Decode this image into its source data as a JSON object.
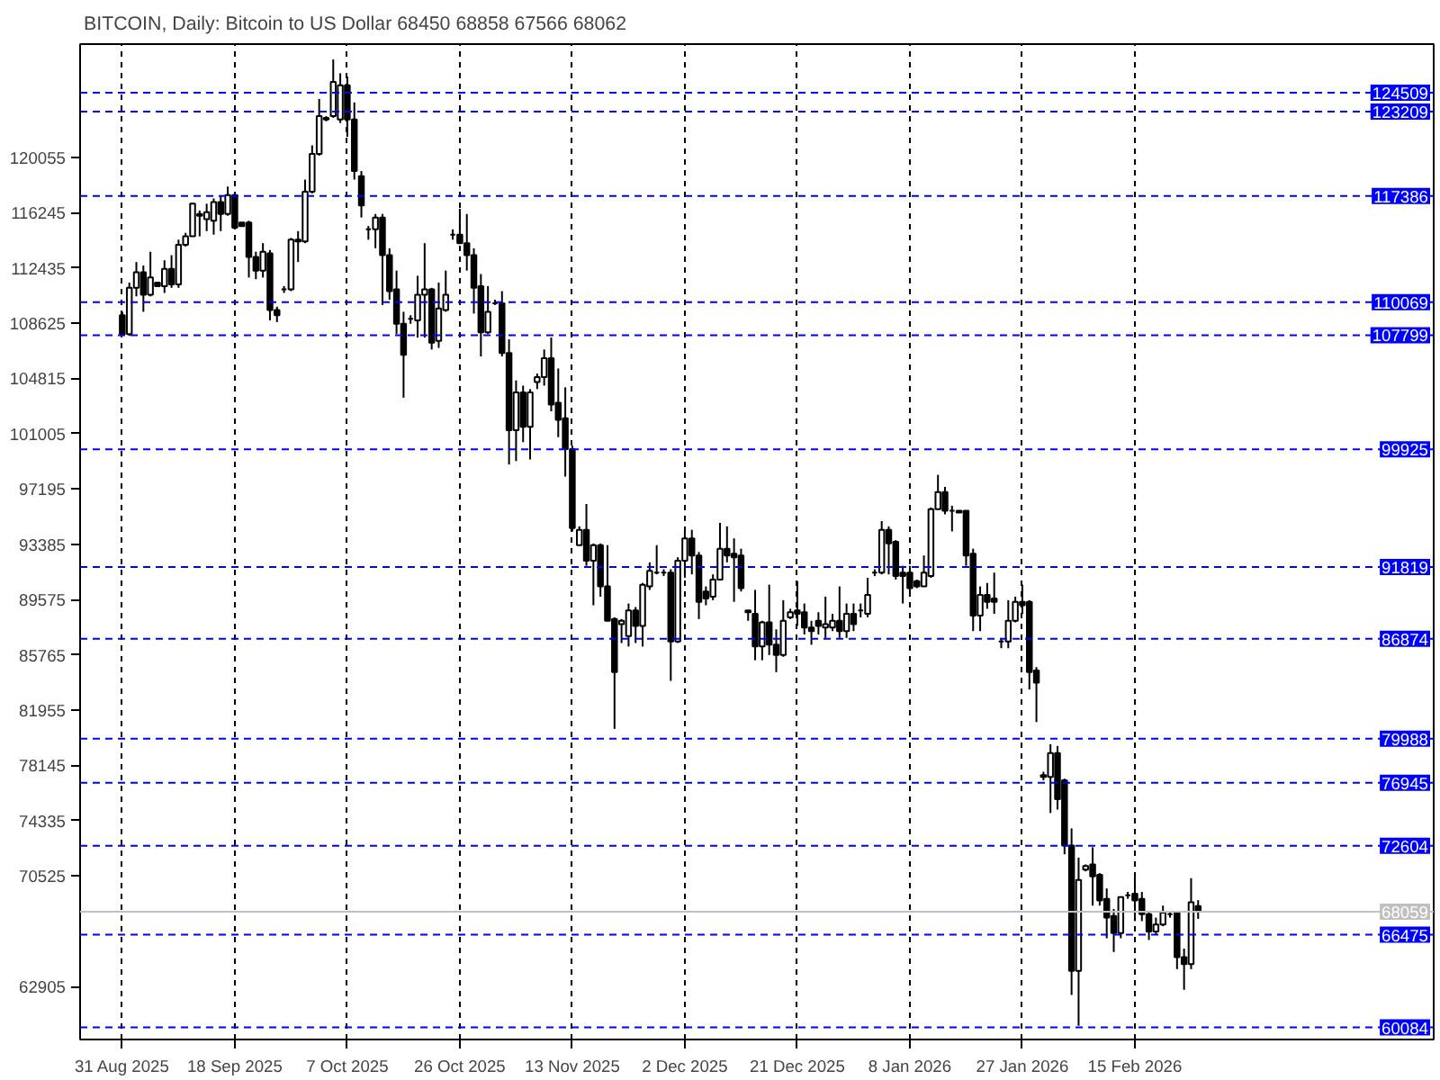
{
  "chart_data": {
    "type": "candlestick",
    "title": "BITCOIN, Daily:  Bitcoin to US Dollar  68450 68858 67566 68062",
    "categories": [
      "31 Aug 2025",
      null,
      null,
      null,
      null,
      null,
      null,
      null,
      null,
      null,
      null,
      null,
      null,
      null,
      null,
      null,
      "18 Sep 2025",
      null,
      null,
      null,
      null,
      null,
      null,
      null,
      null,
      null,
      null,
      null,
      null,
      null,
      null,
      null,
      "7 Oct 2025",
      null,
      null,
      null,
      null,
      null,
      null,
      null,
      null,
      null,
      null,
      null,
      null,
      null,
      null,
      null,
      "26 Oct 2025",
      null,
      null,
      null,
      null,
      null,
      null,
      null,
      null,
      null,
      null,
      null,
      null,
      null,
      null,
      null,
      "13 Nov 2025",
      null,
      null,
      null,
      null,
      null,
      null,
      null,
      null,
      null,
      null,
      null,
      null,
      null,
      null,
      null,
      "2 Dec 2025",
      null,
      null,
      null,
      null,
      null,
      null,
      null,
      null,
      null,
      null,
      null,
      null,
      null,
      null,
      null,
      "21 Dec 2025",
      null,
      null,
      null,
      null,
      null,
      null,
      null,
      null,
      null,
      null,
      null,
      null,
      null,
      null,
      null,
      "8 Jan 2026",
      null,
      null,
      null,
      null,
      null,
      null,
      null,
      null,
      null,
      null,
      null,
      null,
      null,
      null,
      null,
      "27 Jan 2026",
      null,
      null,
      null,
      null,
      null,
      null,
      null,
      null,
      null,
      null,
      null,
      null,
      null,
      null,
      null,
      "15 Feb 2026",
      null,
      null,
      null,
      null,
      null,
      null,
      null,
      null,
      null
    ],
    "ohlc": [
      [
        109170,
        109410,
        107750,
        107870
      ],
      [
        107870,
        111420,
        107750,
        111060
      ],
      [
        111060,
        112840,
        110470,
        112130
      ],
      [
        112130,
        112600,
        109410,
        110590
      ],
      [
        110590,
        113550,
        110470,
        111770
      ],
      [
        111420,
        111420,
        111180,
        111180
      ],
      [
        111180,
        112960,
        110710,
        112370
      ],
      [
        112370,
        113310,
        111060,
        111300
      ],
      [
        111300,
        114380,
        111060,
        114020
      ],
      [
        114020,
        114850,
        113900,
        114610
      ],
      [
        114610,
        116860,
        114610,
        116860
      ],
      [
        116030,
        116390,
        114610,
        116150
      ],
      [
        115800,
        116860,
        114970,
        116270
      ],
      [
        115680,
        117220,
        114730,
        116980
      ],
      [
        116980,
        117450,
        114970,
        116150
      ],
      [
        116150,
        118040,
        116030,
        117450
      ],
      [
        117450,
        117570,
        115090,
        115210
      ],
      [
        115560,
        115560,
        115320,
        115320
      ],
      [
        115560,
        115680,
        111770,
        113190
      ],
      [
        113190,
        113550,
        111660,
        112250
      ],
      [
        112250,
        114140,
        111770,
        113550
      ],
      [
        113430,
        113670,
        108820,
        109530
      ],
      [
        109530,
        109760,
        108700,
        109170
      ],
      [
        110950,
        111180,
        110710,
        110950
      ],
      [
        110950,
        114500,
        110830,
        114380
      ],
      [
        114380,
        114970,
        112840,
        114260
      ],
      [
        114260,
        118520,
        114140,
        117690
      ],
      [
        117690,
        120880,
        117570,
        120290
      ],
      [
        120290,
        124080,
        120170,
        122890
      ],
      [
        122780,
        122890,
        122540,
        122660
      ],
      [
        122890,
        126800,
        122780,
        125260
      ],
      [
        122660,
        125850,
        122420,
        125020
      ],
      [
        125020,
        125620,
        121470,
        122660
      ],
      [
        122660,
        123840,
        118520,
        119110
      ],
      [
        118750,
        119110,
        115910,
        116740
      ],
      [
        115090,
        115320,
        114380,
        115090
      ],
      [
        115090,
        116150,
        113790,
        115910
      ],
      [
        115910,
        116150,
        109880,
        113310
      ],
      [
        113310,
        113790,
        110240,
        110830
      ],
      [
        110950,
        112250,
        107870,
        108580
      ],
      [
        108580,
        109410,
        103490,
        106450
      ],
      [
        108930,
        109170,
        108580,
        108930
      ],
      [
        108820,
        111890,
        107630,
        110590
      ],
      [
        110590,
        114140,
        107630,
        110950
      ],
      [
        110950,
        111060,
        106810,
        107280
      ],
      [
        107400,
        111420,
        106920,
        109640
      ],
      [
        109530,
        112250,
        109410,
        110590
      ],
      [
        114730,
        115090,
        114380,
        114730
      ],
      [
        114730,
        116510,
        114140,
        114140
      ],
      [
        114140,
        116150,
        112250,
        113310
      ],
      [
        113310,
        113790,
        109290,
        111060
      ],
      [
        111180,
        112010,
        106330,
        107990
      ],
      [
        107990,
        111180,
        107870,
        109410
      ],
      [
        110000,
        110240,
        109880,
        110000
      ],
      [
        110000,
        110830,
        106330,
        106570
      ],
      [
        106570,
        107510,
        98880,
        101250
      ],
      [
        101250,
        104680,
        99120,
        103850
      ],
      [
        103850,
        104320,
        100420,
        101480
      ],
      [
        101480,
        104080,
        99230,
        103850
      ],
      [
        104560,
        105150,
        104080,
        104910
      ],
      [
        104910,
        106810,
        104320,
        106210
      ],
      [
        106210,
        107630,
        102550,
        103020
      ],
      [
        103140,
        105500,
        100770,
        101960
      ],
      [
        102070,
        104200,
        98050,
        99940
      ],
      [
        99940,
        100180,
        94270,
        94500
      ],
      [
        93320,
        94620,
        93320,
        94380
      ],
      [
        94380,
        96160,
        91900,
        92250
      ],
      [
        92250,
        93440,
        89180,
        93320
      ],
      [
        93320,
        93440,
        89770,
        90480
      ],
      [
        90480,
        93320,
        88110,
        88110
      ],
      [
        88230,
        88350,
        80660,
        84570
      ],
      [
        87880,
        88230,
        86580,
        88110
      ],
      [
        87050,
        89300,
        86340,
        88820
      ],
      [
        88820,
        89060,
        86580,
        87760
      ],
      [
        87760,
        90720,
        86340,
        90600
      ],
      [
        90480,
        92140,
        90240,
        91550
      ],
      [
        91430,
        93320,
        91310,
        91430
      ],
      [
        91430,
        91660,
        91190,
        91430
      ],
      [
        91430,
        91660,
        83970,
        86690
      ],
      [
        86690,
        92490,
        86580,
        92250
      ],
      [
        92250,
        94380,
        91070,
        93790
      ],
      [
        93790,
        94380,
        91310,
        92610
      ],
      [
        92610,
        92850,
        88230,
        89420
      ],
      [
        90130,
        90480,
        89180,
        89650
      ],
      [
        89770,
        91310,
        89530,
        90950
      ],
      [
        90950,
        94860,
        90950,
        93080
      ],
      [
        93080,
        94620,
        92140,
        92610
      ],
      [
        92730,
        93790,
        89420,
        92490
      ],
      [
        92610,
        93080,
        90130,
        90360
      ],
      [
        88820,
        88820,
        88110,
        88700
      ],
      [
        88590,
        90240,
        85390,
        86340
      ],
      [
        86340,
        88110,
        85390,
        88000
      ],
      [
        88000,
        90600,
        85750,
        86460
      ],
      [
        86460,
        87520,
        84570,
        85750
      ],
      [
        85750,
        89530,
        85630,
        88110
      ],
      [
        88350,
        88940,
        88230,
        88700
      ],
      [
        88820,
        90840,
        87760,
        88590
      ],
      [
        88700,
        89300,
        87170,
        87640
      ],
      [
        87640,
        88110,
        86460,
        87400
      ],
      [
        88110,
        88700,
        87170,
        87760
      ],
      [
        87640,
        89770,
        86930,
        87880
      ],
      [
        87640,
        88590,
        87400,
        88110
      ],
      [
        88110,
        90480,
        86930,
        87400
      ],
      [
        87400,
        89300,
        86930,
        88590
      ],
      [
        88590,
        89300,
        87400,
        87880
      ],
      [
        88820,
        89300,
        88350,
        88820
      ],
      [
        88590,
        91070,
        88350,
        89890
      ],
      [
        91430,
        91660,
        91190,
        91430
      ],
      [
        91430,
        94980,
        91310,
        94380
      ],
      [
        94380,
        94620,
        91310,
        93440
      ],
      [
        93560,
        93670,
        90950,
        91190
      ],
      [
        91430,
        91900,
        89300,
        91190
      ],
      [
        91430,
        91900,
        89770,
        90360
      ],
      [
        90840,
        90950,
        90360,
        90480
      ],
      [
        90480,
        92610,
        90480,
        91430
      ],
      [
        91190,
        95920,
        91070,
        95800
      ],
      [
        95800,
        98170,
        95800,
        96990
      ],
      [
        96990,
        97340,
        95450,
        95690
      ],
      [
        95690,
        96040,
        94270,
        95690
      ],
      [
        95690,
        95690,
        95570,
        95570
      ],
      [
        95690,
        95690,
        91900,
        92610
      ],
      [
        92730,
        93080,
        87400,
        88470
      ],
      [
        88470,
        90480,
        87400,
        89890
      ],
      [
        89890,
        90720,
        88940,
        89420
      ],
      [
        89650,
        91430,
        88590,
        89420
      ],
      [
        86690,
        86930,
        86220,
        86690
      ],
      [
        86690,
        89530,
        86220,
        88110
      ],
      [
        88110,
        89770,
        88000,
        89420
      ],
      [
        89420,
        90600,
        88590,
        89180
      ],
      [
        89420,
        89530,
        83380,
        84570
      ],
      [
        84680,
        84920,
        81130,
        83850
      ],
      [
        77350,
        77700,
        77110,
        77470
      ],
      [
        77350,
        79600,
        74860,
        79000
      ],
      [
        79000,
        79480,
        75100,
        75810
      ],
      [
        77110,
        77230,
        72020,
        72620
      ],
      [
        72620,
        73800,
        62320,
        63980
      ],
      [
        63980,
        71790,
        60200,
        70250
      ],
      [
        70960,
        71320,
        70840,
        71200
      ],
      [
        71320,
        72500,
        68480,
        70490
      ],
      [
        70610,
        70720,
        68480,
        68830
      ],
      [
        68950,
        69660,
        66230,
        67650
      ],
      [
        67770,
        68240,
        65280,
        66580
      ],
      [
        66580,
        69070,
        66230,
        69070
      ],
      [
        69190,
        69420,
        68950,
        69190
      ],
      [
        69300,
        70490,
        67410,
        68830
      ],
      [
        68950,
        69420,
        67410,
        67890
      ],
      [
        67890,
        68000,
        66110,
        66700
      ],
      [
        66700,
        67650,
        66470,
        67170
      ],
      [
        67170,
        68480,
        67060,
        68000
      ],
      [
        67890,
        68120,
        67650,
        67890
      ],
      [
        68000,
        68000,
        64100,
        64930
      ],
      [
        64930,
        65520,
        62680,
        64450
      ],
      [
        64450,
        70370,
        64100,
        68710
      ],
      [
        68450,
        68858,
        67566,
        68062
      ]
    ],
    "color": "#000000",
    "ylim": [
      59250,
      127860
    ],
    "yticks": [
      120055,
      116245,
      112435,
      108625,
      104815,
      101005,
      97195,
      93385,
      89575,
      85765,
      81955,
      78145,
      74335,
      70525,
      62905
    ],
    "grid": "x",
    "ref_lines": [
      {
        "axis": "y",
        "value": 124509,
        "label": "124509",
        "color": "#0000ff",
        "line_style": "dashed"
      },
      {
        "axis": "y",
        "value": 123209,
        "label": "123209",
        "color": "#0000ff",
        "line_style": "dashed"
      },
      {
        "axis": "y",
        "value": 117386,
        "label": "117386",
        "color": "#0000ff",
        "line_style": "dashed"
      },
      {
        "axis": "y",
        "value": 110069,
        "label": "110069",
        "color": "#0000ff",
        "line_style": "dashed"
      },
      {
        "axis": "y",
        "value": 107799,
        "label": "107799",
        "color": "#0000ff",
        "line_style": "dashed"
      },
      {
        "axis": "y",
        "value": 99925,
        "label": "99925",
        "color": "#0000ff",
        "line_style": "dashed"
      },
      {
        "axis": "y",
        "value": 91819,
        "label": "91819",
        "color": "#0000ff",
        "line_style": "dashed"
      },
      {
        "axis": "y",
        "value": 86874,
        "label": "86874",
        "color": "#0000ff",
        "line_style": "dashed"
      },
      {
        "axis": "y",
        "value": 79988,
        "label": "79988",
        "color": "#0000ff",
        "line_style": "dashed"
      },
      {
        "axis": "y",
        "value": 76945,
        "label": "76945",
        "color": "#0000ff",
        "line_style": "dashed"
      },
      {
        "axis": "y",
        "value": 72604,
        "label": "72604",
        "color": "#0000ff",
        "line_style": "dashed"
      },
      {
        "axis": "y",
        "value": 68059,
        "label": "68059",
        "color": "#c0c0c0",
        "line_style": "solid"
      },
      {
        "axis": "y",
        "value": 66475,
        "label": "66475",
        "color": "#0000ff",
        "line_style": "dashed"
      },
      {
        "axis": "y",
        "value": 60084,
        "label": "60084",
        "color": "#0000ff",
        "line_style": "dashed"
      }
    ]
  }
}
